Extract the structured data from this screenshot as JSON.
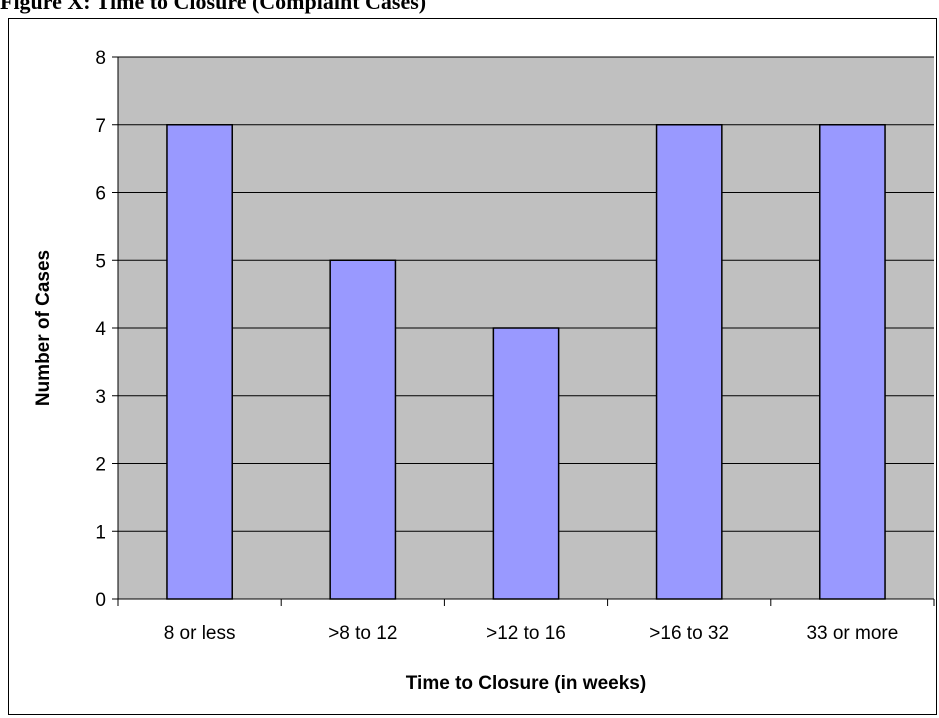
{
  "caption": "Figure X: Time to Closure (Complaint Cases)",
  "chart_data": {
    "type": "bar",
    "title": "",
    "xlabel": "Time to Closure (in weeks)",
    "ylabel": "Number of Cases",
    "categories": [
      "8 or less",
      ">8 to 12",
      ">12 to 16",
      ">16 to 32",
      "33 or more"
    ],
    "values": [
      7,
      5,
      4,
      7,
      7
    ],
    "ylim": [
      0,
      8
    ],
    "yticks": [
      0,
      1,
      2,
      3,
      4,
      5,
      6,
      7,
      8
    ],
    "grid": true,
    "legend": "none",
    "colors": {
      "bar": "#9999ff",
      "plot_bg": "#c0c0c0",
      "grid": "#000000"
    }
  }
}
